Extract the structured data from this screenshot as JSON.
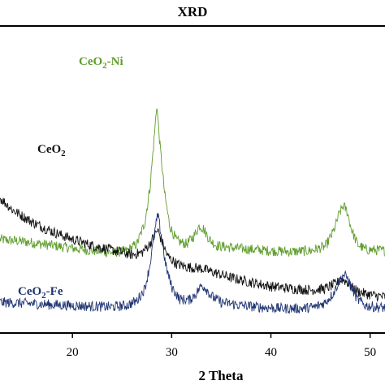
{
  "chart_data": {
    "type": "line",
    "title": "XRD",
    "xlabel": "2 Theta",
    "ylabel": "",
    "xlim": [
      12.7,
      51.5
    ],
    "ylim": [
      0,
      1
    ],
    "x_ticks": [
      20,
      30,
      40,
      50
    ],
    "x_tick_labels": [
      "20",
      "30",
      "40",
      "50"
    ],
    "grid": false,
    "legend": "none (series labeled inline)",
    "series": [
      {
        "name": "CeO₂-Ni",
        "label_main": "CeO",
        "label_sub": "2",
        "label_suffix": "-Ni",
        "color": "#5f9e2d",
        "x": [
          12.7,
          15,
          18,
          21,
          24,
          25.5,
          26.5,
          27.3,
          27.8,
          28.2,
          28.5,
          28.8,
          29.3,
          29.8,
          30.5,
          31.5,
          32.3,
          32.8,
          33.2,
          33.8,
          34.5,
          36,
          38,
          40,
          42,
          44,
          45.5,
          46.3,
          46.9,
          47.3,
          47.7,
          48.1,
          48.7,
          49.5,
          50.5,
          51.5
        ],
        "y": [
          0.305,
          0.298,
          0.285,
          0.272,
          0.262,
          0.268,
          0.29,
          0.36,
          0.47,
          0.62,
          0.745,
          0.62,
          0.45,
          0.35,
          0.3,
          0.29,
          0.318,
          0.35,
          0.34,
          0.305,
          0.285,
          0.278,
          0.272,
          0.268,
          0.265,
          0.268,
          0.282,
          0.33,
          0.39,
          0.415,
          0.395,
          0.34,
          0.29,
          0.272,
          0.27,
          0.268
        ]
      },
      {
        "name": "CeO₂",
        "label_main": "CeO",
        "label_sub": "2",
        "label_suffix": "",
        "color": "#111111",
        "x": [
          12.7,
          14,
          16,
          18,
          20,
          22,
          24,
          26,
          27,
          27.8,
          28.3,
          28.6,
          29,
          29.6,
          30.5,
          31.5,
          32.5,
          33,
          33.5,
          34.5,
          36,
          38,
          40,
          42,
          44,
          45.5,
          46.5,
          47.2,
          47.6,
          48.1,
          48.8,
          49.5,
          50.5,
          51.5
        ],
        "y": [
          0.44,
          0.4,
          0.36,
          0.33,
          0.305,
          0.285,
          0.27,
          0.255,
          0.262,
          0.29,
          0.32,
          0.335,
          0.3,
          0.25,
          0.225,
          0.215,
          0.212,
          0.21,
          0.205,
          0.195,
          0.18,
          0.165,
          0.152,
          0.145,
          0.14,
          0.145,
          0.16,
          0.175,
          0.168,
          0.15,
          0.135,
          0.128,
          0.122,
          0.118
        ]
      },
      {
        "name": "CeO₂-Fe",
        "label_main": "CeO",
        "label_sub": "2",
        "label_suffix": "-Fe",
        "color": "#1f3573",
        "x": [
          12.7,
          15,
          18,
          21,
          24,
          25.5,
          26.5,
          27.3,
          27.8,
          28.3,
          28.6,
          28.9,
          29.4,
          30,
          30.8,
          31.8,
          32.5,
          33,
          33.4,
          34,
          35,
          37,
          39,
          41,
          43,
          44.5,
          45.5,
          46.3,
          46.9,
          47.3,
          47.7,
          48.1,
          48.7,
          49.5,
          50.5,
          51.5
        ],
        "y": [
          0.1,
          0.097,
          0.092,
          0.088,
          0.085,
          0.09,
          0.105,
          0.145,
          0.22,
          0.33,
          0.385,
          0.33,
          0.22,
          0.15,
          0.11,
          0.108,
          0.13,
          0.155,
          0.148,
          0.12,
          0.1,
          0.09,
          0.084,
          0.08,
          0.08,
          0.085,
          0.1,
          0.13,
          0.17,
          0.19,
          0.18,
          0.15,
          0.11,
          0.09,
          0.085,
          0.082
        ]
      }
    ]
  }
}
